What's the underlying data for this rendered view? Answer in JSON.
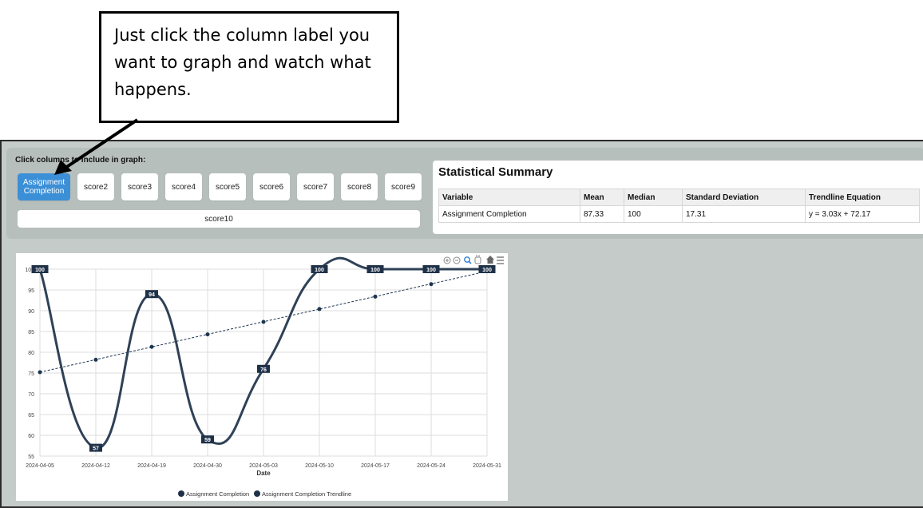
{
  "callout": {
    "text": "Just click the column label you want to graph and watch what happens."
  },
  "columns_panel": {
    "title": "Click columns to include in graph:",
    "buttons": [
      {
        "label": "Assignment Completion",
        "active": true
      },
      {
        "label": "score2",
        "active": false
      },
      {
        "label": "score3",
        "active": false
      },
      {
        "label": "score4",
        "active": false
      },
      {
        "label": "score5",
        "active": false
      },
      {
        "label": "score6",
        "active": false
      },
      {
        "label": "score7",
        "active": false
      },
      {
        "label": "score8",
        "active": false
      },
      {
        "label": "score9",
        "active": false
      },
      {
        "label": "score10",
        "active": false
      }
    ]
  },
  "stats": {
    "title": "Statistical Summary",
    "headers": [
      "Variable",
      "Mean",
      "Median",
      "Standard Deviation",
      "Trendline Equation"
    ],
    "rows": [
      [
        "Assignment Completion",
        "87.33",
        "100",
        "17.31",
        "y = 3.03x + 72.17"
      ]
    ]
  },
  "colors": {
    "accent": "#3b8fd6",
    "series": "#2f4157",
    "trendline": "#1e3550",
    "label_bg": "#1f3148"
  },
  "toolbar_icons": [
    "zoom-in-icon",
    "zoom-out-icon",
    "magnifier-icon",
    "pan-icon",
    "home-icon",
    "menu-icon"
  ],
  "chart_data": {
    "type": "line",
    "xlabel": "Date",
    "ylabel": "",
    "ylim": [
      55,
      100
    ],
    "yticks": [
      "55",
      "60",
      "65",
      "70",
      "75",
      "80",
      "85",
      "90",
      "95",
      "100"
    ],
    "categories": [
      "2024-04-05",
      "2024-04-12",
      "2024-04-19",
      "2024-04-30",
      "2024-05-03",
      "2024-05-10",
      "2024-05-17",
      "2024-05-24",
      "2024-05-31"
    ],
    "series": [
      {
        "name": "Assignment Completion",
        "values": [
          100,
          57,
          94,
          59,
          76,
          100,
          100,
          100,
          100
        ],
        "labels": [
          "100",
          "57",
          "94",
          "59",
          "76",
          "100",
          "100",
          "100",
          "100"
        ]
      },
      {
        "name": "Assignment Completion Trendline",
        "values": [
          75.2,
          78.2,
          81.3,
          84.3,
          87.3,
          90.4,
          93.4,
          96.4,
          99.5
        ]
      }
    ],
    "grid": true,
    "legend": "bottom-center"
  }
}
